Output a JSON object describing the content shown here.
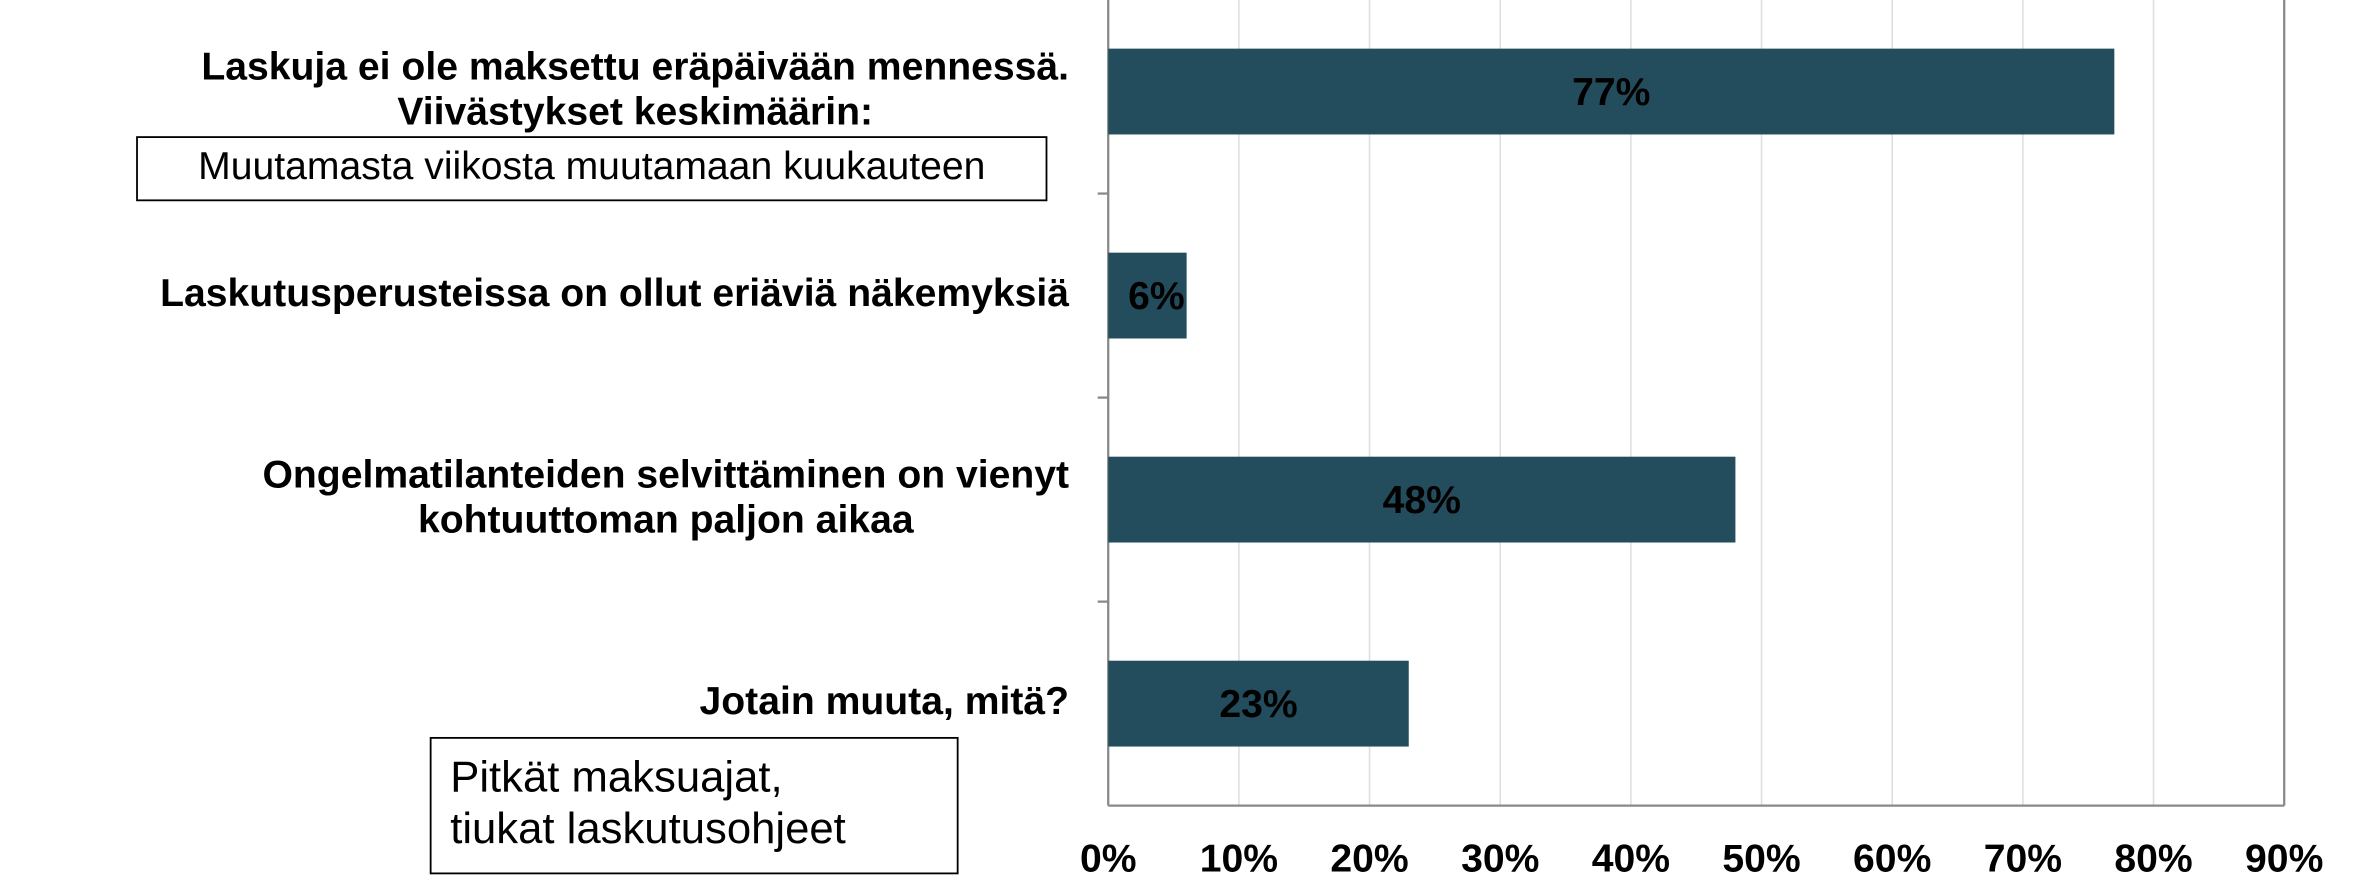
{
  "chart_data": {
    "type": "barh",
    "categories": [
      [
        "Laskuja ei ole maksettu eräpäivään mennessä.",
        "Viivästykset keskimäärin:"
      ],
      [
        "Laskutusperusteissa on ollut eriäviä näkemyksiä"
      ],
      [
        "Ongelmatilanteiden selvittäminen on vienyt",
        "kohtuuttoman paljon aikaa"
      ],
      [
        "Jotain muuta, mitä?"
      ]
    ],
    "values": [
      77,
      6,
      48,
      23
    ],
    "value_labels": [
      "77%",
      "6%",
      "48%",
      "23%"
    ],
    "color": "#234d5c",
    "xlim": [
      0,
      90
    ],
    "xticks": [
      {
        "value": 0,
        "label": "0%"
      },
      {
        "value": 10,
        "label": "10%"
      },
      {
        "value": 20,
        "label": "20%"
      },
      {
        "value": 30,
        "label": "30%"
      },
      {
        "value": 40,
        "label": "40%"
      },
      {
        "value": 50,
        "label": "50%"
      },
      {
        "value": 60,
        "label": "60%"
      },
      {
        "value": 70,
        "label": "70%"
      },
      {
        "value": 80,
        "label": "80%"
      },
      {
        "value": 90,
        "label": "90%"
      }
    ],
    "grid": true,
    "annotations": [
      [
        "Muutamasta viikosta muutamaan kuukauteen"
      ],
      [
        "Pitkät maksuajat,",
        "tiukat laskutusohjeet"
      ]
    ]
  }
}
